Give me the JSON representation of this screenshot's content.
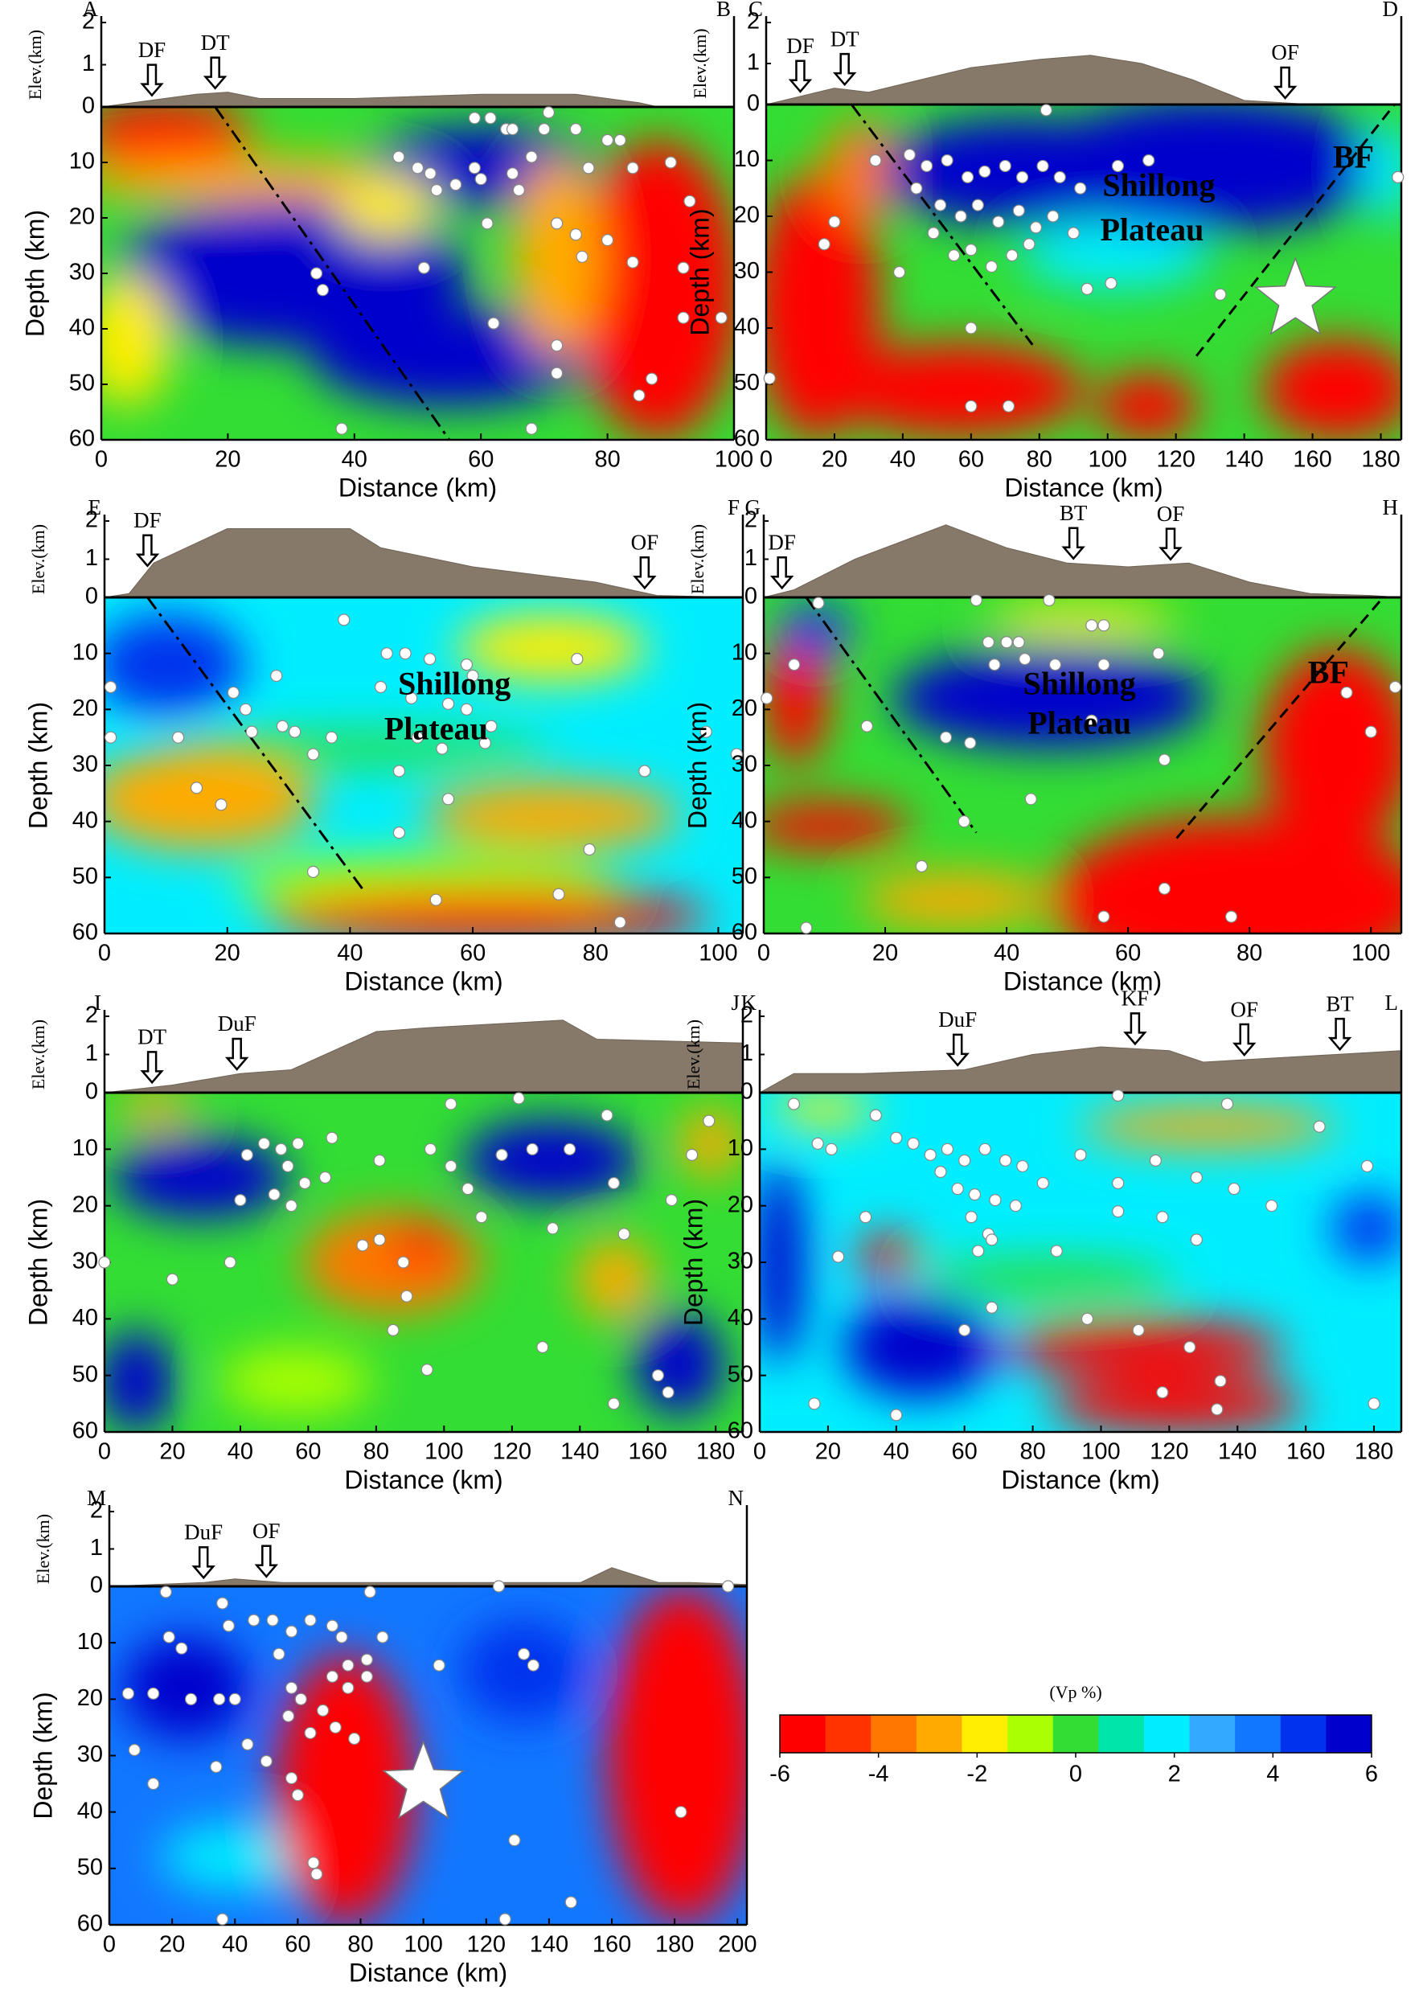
{
  "chart_data": [
    {
      "type": "section",
      "start": "A",
      "end": "B",
      "xlabel": "Distance (km)",
      "ylabel": "Depth (km)",
      "elevlabel": "Elev.(km)",
      "xlim": [
        0,
        100
      ],
      "xticks": [
        0,
        20,
        40,
        60,
        80,
        100
      ],
      "ylim": [
        0,
        60
      ],
      "yticks": [
        0,
        10,
        20,
        30,
        40,
        50,
        60
      ],
      "elevlim": [
        0,
        2
      ],
      "elevticks": [
        1,
        2
      ],
      "topography": {
        "x": [
          0,
          5,
          15,
          20,
          25,
          40,
          60,
          75,
          85,
          88,
          100
        ],
        "elev": [
          0,
          0.1,
          0.3,
          0.35,
          0.2,
          0.2,
          0.3,
          0.3,
          0.1,
          0,
          0
        ]
      },
      "faults": [
        {
          "label": "DF",
          "x": 8
        },
        {
          "label": "DT",
          "x": 18
        }
      ],
      "traces": [
        {
          "x": [
            18,
            55
          ],
          "depth": [
            0,
            60
          ],
          "style": "dashdot"
        }
      ],
      "events": {
        "x": [
          59,
          61.5,
          64,
          65,
          70.7,
          70,
          80,
          82,
          75,
          47,
          50,
          52,
          53,
          56,
          59,
          60,
          65,
          66,
          68,
          77,
          84,
          90,
          93,
          72,
          75,
          80,
          76,
          84,
          92,
          34,
          35,
          62,
          72,
          72,
          87,
          92,
          98,
          38,
          68,
          85,
          51,
          61
        ],
        "depth": [
          2,
          2,
          4,
          4,
          1,
          4,
          6,
          6,
          4,
          9,
          11,
          12,
          15,
          14,
          11,
          13,
          12,
          15,
          9,
          11,
          11,
          10,
          17,
          21,
          23,
          24,
          27,
          28,
          29,
          30,
          33,
          39,
          43,
          48,
          49,
          38,
          38,
          58,
          58,
          52,
          29,
          21
        ]
      }
    },
    {
      "type": "section",
      "start": "C",
      "end": "D",
      "xlabel": "Distance (km)",
      "ylabel": "Depth (km)",
      "elevlabel": "Elev.(km)",
      "xlim": [
        0,
        186
      ],
      "xticks": [
        0,
        20,
        40,
        60,
        80,
        100,
        120,
        140,
        160,
        180
      ],
      "ylim": [
        0,
        60
      ],
      "yticks": [
        0,
        10,
        20,
        30,
        40,
        50,
        60
      ],
      "elevlim": [
        0,
        2
      ],
      "elevticks": [
        1,
        2
      ],
      "topography": {
        "x": [
          0,
          10,
          20,
          30,
          40,
          60,
          80,
          95,
          110,
          125,
          140,
          160,
          186
        ],
        "elev": [
          0,
          0.2,
          0.4,
          0.3,
          0.5,
          0.9,
          1.1,
          1.2,
          1.0,
          0.6,
          0.1,
          0,
          0
        ]
      },
      "faults": [
        {
          "label": "DF",
          "x": 10
        },
        {
          "label": "DT",
          "x": 23
        },
        {
          "label": "OF",
          "x": 152
        }
      ],
      "traces": [
        {
          "x": [
            25,
            78
          ],
          "depth": [
            0,
            43
          ],
          "style": "dashdot"
        },
        {
          "x": [
            126,
            184
          ],
          "depth": [
            45,
            0
          ],
          "style": "dashed"
        }
      ],
      "events": {
        "x": [
          82,
          42,
          47,
          53,
          59,
          64,
          70,
          75,
          81,
          86,
          92,
          44,
          51,
          57,
          62,
          68,
          74,
          79,
          84,
          90,
          49,
          55,
          60,
          66,
          72,
          77,
          103,
          112,
          94,
          101,
          39,
          17,
          20,
          60,
          60,
          71,
          1,
          185,
          133,
          32
        ],
        "depth": [
          1,
          9,
          11,
          10,
          13,
          12,
          11,
          13,
          11,
          13,
          15,
          15,
          18,
          20,
          18,
          21,
          19,
          22,
          20,
          23,
          23,
          27,
          26,
          29,
          27,
          25,
          11,
          10,
          33,
          32,
          30,
          25,
          21,
          40,
          54,
          54,
          49,
          13,
          34,
          10
        ]
      },
      "star": {
        "x": 155,
        "depth": 35
      },
      "annotations": [
        "Shillong",
        "Plateau",
        "BF"
      ]
    },
    {
      "type": "section",
      "start": "E",
      "end": "F",
      "xlabel": "Distance (km)",
      "ylabel": "Depth (km)",
      "elevlabel": "Elev.(km)",
      "xlim": [
        0,
        104
      ],
      "xticks": [
        0,
        20,
        40,
        60,
        80,
        100
      ],
      "ylim": [
        0,
        60
      ],
      "yticks": [
        0,
        10,
        20,
        30,
        40,
        50,
        60
      ],
      "elevlim": [
        0,
        2
      ],
      "elevticks": [
        1,
        2
      ],
      "topography": {
        "x": [
          0,
          4,
          8,
          20,
          40,
          45,
          60,
          80,
          90,
          104
        ],
        "elev": [
          0,
          0.1,
          0.9,
          1.8,
          1.8,
          1.3,
          0.8,
          0.4,
          0.05,
          0
        ]
      },
      "faults": [
        {
          "label": "DF",
          "x": 7
        },
        {
          "label": "OF",
          "x": 88
        }
      ],
      "traces": [
        {
          "x": [
            7,
            42
          ],
          "depth": [
            0,
            52
          ],
          "style": "dashdot"
        }
      ],
      "events": {
        "x": [
          39,
          77,
          46,
          49,
          53,
          59,
          60,
          45,
          50,
          56,
          59,
          63,
          51,
          55,
          62,
          48,
          1,
          1,
          21,
          23,
          24,
          29,
          31,
          37,
          34,
          12,
          15,
          19,
          28,
          88,
          98,
          103,
          56,
          48,
          79,
          34,
          54,
          74,
          84
        ],
        "depth": [
          4,
          11,
          10,
          10,
          11,
          12,
          14,
          16,
          18,
          19,
          20,
          23,
          25,
          27,
          26,
          31,
          16,
          25,
          17,
          20,
          24,
          23,
          24,
          25,
          28,
          25,
          34,
          37,
          14,
          31,
          24,
          28,
          36,
          42,
          45,
          49,
          54,
          53,
          58
        ]
      },
      "annotations": [
        "Shillong",
        "Plateau"
      ]
    },
    {
      "type": "section",
      "start": "G",
      "end": "H",
      "xlabel": "Distance (km)",
      "ylabel": "Depth (km)",
      "elevlabel": "Elev.(km)",
      "xlim": [
        0,
        105
      ],
      "xticks": [
        0,
        20,
        40,
        60,
        80,
        100
      ],
      "ylim": [
        0,
        60
      ],
      "yticks": [
        0,
        10,
        20,
        30,
        40,
        50,
        60
      ],
      "elevlim": [
        0,
        2
      ],
      "elevticks": [
        1,
        2
      ],
      "topography": {
        "x": [
          0,
          5,
          15,
          30,
          40,
          50,
          60,
          70,
          80,
          90,
          100,
          105
        ],
        "elev": [
          0,
          0.2,
          1.0,
          1.9,
          1.3,
          0.9,
          0.8,
          0.9,
          0.4,
          0.1,
          0.05,
          0
        ]
      },
      "faults": [
        {
          "label": "DF",
          "x": 3
        },
        {
          "label": "BT",
          "x": 51
        },
        {
          "label": "OF",
          "x": 67
        }
      ],
      "traces": [
        {
          "x": [
            7,
            35
          ],
          "depth": [
            0,
            42
          ],
          "style": "dashdot"
        },
        {
          "x": [
            68,
            102
          ],
          "depth": [
            43,
            0
          ],
          "style": "dashed"
        }
      ],
      "events": {
        "x": [
          9,
          35,
          47,
          54,
          56,
          37,
          40,
          42,
          43,
          38,
          48,
          56,
          65,
          5,
          0.5,
          17,
          30,
          34,
          54,
          66,
          44,
          96,
          100,
          104,
          33,
          26,
          66,
          56,
          77,
          7
        ],
        "depth": [
          1,
          0.5,
          0.5,
          5,
          5,
          8,
          8,
          8,
          11,
          12,
          12,
          12,
          10,
          12,
          18,
          23,
          25,
          26,
          22,
          29,
          36,
          17,
          24,
          16,
          40,
          48,
          52,
          57,
          57,
          59
        ]
      },
      "annotations": [
        "Shillong",
        "Plateau",
        "BF"
      ]
    },
    {
      "type": "section",
      "start": "I",
      "end": "J",
      "xlabel": "Distance (km)",
      "ylabel": "Depth (km)",
      "elevlabel": "Elev.(km)",
      "xlim": [
        0,
        188
      ],
      "xticks": [
        0,
        20,
        40,
        60,
        80,
        100,
        120,
        140,
        160,
        180
      ],
      "ylim": [
        0,
        60
      ],
      "yticks": [
        0,
        10,
        20,
        30,
        40,
        50,
        60
      ],
      "elevlim": [
        0,
        2
      ],
      "elevticks": [
        1,
        2
      ],
      "topography": {
        "x": [
          0,
          20,
          40,
          55,
          80,
          95,
          135,
          145,
          188
        ],
        "elev": [
          0,
          0.2,
          0.5,
          0.6,
          1.6,
          1.7,
          1.9,
          1.4,
          1.3
        ]
      },
      "faults": [
        {
          "label": "DT",
          "x": 14
        },
        {
          "label": "DuF",
          "x": 39
        }
      ],
      "events": {
        "x": [
          102,
          122,
          148,
          178,
          47,
          52,
          57,
          67,
          42,
          54,
          59,
          50,
          55,
          65,
          81,
          96,
          102,
          107,
          111,
          117,
          126,
          137,
          132,
          150,
          153,
          173,
          167,
          40,
          20,
          37,
          76,
          81,
          88,
          89,
          85,
          95,
          129,
          150,
          163,
          166,
          0
        ],
        "depth": [
          2,
          1,
          4,
          5,
          9,
          10,
          9,
          8,
          11,
          13,
          16,
          18,
          20,
          15,
          12,
          10,
          13,
          17,
          22,
          11,
          10,
          10,
          24,
          16,
          25,
          11,
          19,
          19,
          33,
          30,
          27,
          26,
          30,
          36,
          42,
          49,
          45,
          55,
          50,
          53,
          30
        ]
      }
    },
    {
      "type": "section",
      "start": "K",
      "end": "L",
      "xlabel": "Distance (km)",
      "ylabel": "Depth (km)",
      "elevlabel": "Elev.(km)",
      "xlim": [
        0,
        188
      ],
      "xticks": [
        0,
        20,
        40,
        60,
        80,
        100,
        120,
        140,
        160,
        180
      ],
      "ylim": [
        0,
        60
      ],
      "yticks": [
        0,
        10,
        20,
        30,
        40,
        50,
        60
      ],
      "elevlim": [
        0,
        2
      ],
      "elevticks": [
        1,
        2
      ],
      "topography": {
        "x": [
          0,
          10,
          30,
          60,
          80,
          100,
          120,
          130,
          188
        ],
        "elev": [
          0,
          0.5,
          0.5,
          0.6,
          1.0,
          1.2,
          1.1,
          0.8,
          1.1
        ]
      },
      "faults": [
        {
          "label": "DuF",
          "x": 58
        },
        {
          "label": "KF",
          "x": 110
        },
        {
          "label": "OF",
          "x": 142
        },
        {
          "label": "BT",
          "x": 170
        }
      ],
      "events": {
        "x": [
          10,
          105,
          137,
          164,
          17,
          21,
          34,
          40,
          45,
          50,
          55,
          60,
          66,
          72,
          77,
          83,
          53,
          58,
          63,
          69,
          75,
          62,
          67,
          64,
          68,
          94,
          105,
          116,
          128,
          139,
          150,
          105,
          118,
          31,
          23,
          87,
          128,
          178,
          68,
          60,
          96,
          111,
          126,
          135,
          134,
          118,
          180,
          16,
          40
        ],
        "depth": [
          2,
          0.5,
          2,
          6,
          9,
          10,
          4,
          8,
          9,
          11,
          10,
          12,
          10,
          12,
          13,
          16,
          14,
          17,
          18,
          19,
          20,
          22,
          25,
          28,
          26,
          11,
          16,
          12,
          15,
          17,
          20,
          21,
          22,
          22,
          29,
          28,
          26,
          13,
          38,
          42,
          40,
          42,
          45,
          51,
          56,
          53,
          55,
          55,
          57
        ]
      }
    },
    {
      "type": "section",
      "start": "M",
      "end": "N",
      "xlabel": "Distance (km)",
      "ylabel": "Depth (km)",
      "elevlabel": "Elev.(km)",
      "xlim": [
        0,
        203
      ],
      "xticks": [
        0,
        20,
        40,
        60,
        80,
        100,
        120,
        140,
        160,
        180,
        200
      ],
      "ylim": [
        0,
        60
      ],
      "yticks": [
        0,
        10,
        20,
        30,
        40,
        50,
        60
      ],
      "elevlim": [
        0,
        2
      ],
      "elevticks": [
        1,
        2
      ],
      "topography": {
        "x": [
          0,
          30,
          40,
          55,
          150,
          160,
          175,
          185,
          203
        ],
        "elev": [
          0,
          0.1,
          0.2,
          0.1,
          0.1,
          0.5,
          0.1,
          0.1,
          0.05
        ]
      },
      "faults": [
        {
          "label": "DuF",
          "x": 30
        },
        {
          "label": "OF",
          "x": 50
        }
      ],
      "events": {
        "x": [
          18,
          83,
          124,
          197,
          36,
          38,
          19,
          23,
          46,
          52,
          58,
          64,
          71,
          74,
          87,
          82,
          76,
          71,
          76,
          82,
          54,
          58,
          61,
          68,
          72,
          78,
          64,
          57,
          26,
          35,
          40,
          44,
          50,
          58,
          60,
          65,
          66,
          129,
          132,
          135,
          14,
          6,
          8,
          14,
          34,
          182,
          36,
          147,
          126,
          105
        ],
        "depth": [
          1,
          1,
          0,
          0,
          3,
          7,
          9,
          11,
          6,
          6,
          8,
          6,
          7,
          9,
          9,
          13,
          14,
          16,
          18,
          16,
          12,
          18,
          20,
          22,
          25,
          27,
          26,
          23,
          20,
          20,
          20,
          28,
          31,
          34,
          37,
          49,
          51,
          45,
          12,
          14,
          19,
          19,
          29,
          35,
          32,
          40,
          59,
          56,
          59,
          14
        ]
      },
      "star": {
        "x": 100,
        "depth": 35
      }
    },
    {
      "type": "colorbar",
      "label": "(Vp %)",
      "lim": [
        -6,
        6
      ],
      "ticks": [
        -6,
        -4,
        -2,
        0,
        2,
        4,
        6
      ],
      "colors": [
        "#ff0000",
        "#ff3300",
        "#ff7700",
        "#ffaa00",
        "#ffee00",
        "#aaff00",
        "#33dd33",
        "#00e5aa",
        "#00eeff",
        "#33aaff",
        "#1177ff",
        "#0033ee",
        "#0000cc"
      ]
    }
  ]
}
